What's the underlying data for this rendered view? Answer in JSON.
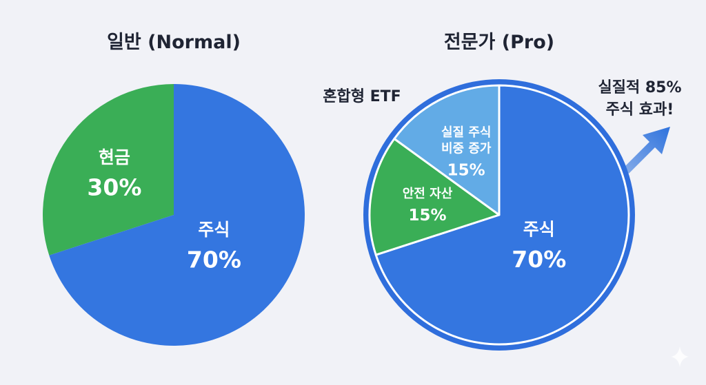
{
  "colors": {
    "background": "#f1f2f7",
    "stock": "#3476e0",
    "stock_rim": "#2f6edc",
    "cash": "#3aae56",
    "etf_stock": "#62abe6",
    "arrow": "#2f73dd",
    "text": "#1f2433"
  },
  "chart_data": [
    {
      "type": "pie",
      "title": "일반 (Normal)",
      "slices": [
        {
          "label": "현금",
          "value": 30,
          "value_label": "30%",
          "color": "#3aae56"
        },
        {
          "label": "주식",
          "value": 70,
          "value_label": "70%",
          "color": "#3476e0"
        }
      ]
    },
    {
      "type": "pie",
      "title": "전문가 (Pro)",
      "slices": [
        {
          "label": "안전 자산",
          "value": 15,
          "value_label": "15%",
          "color": "#3aae56"
        },
        {
          "label": "실질 주식 비중 증가",
          "label_lines": [
            "실질 주식",
            "비중 증가"
          ],
          "value": 15,
          "value_label": "15%",
          "color": "#62abe6"
        },
        {
          "label": "주식",
          "value": 70,
          "value_label": "70%",
          "color": "#3476e0"
        }
      ],
      "outer_ring_label": "혼합형 ETF",
      "callout_lines": [
        "실질적 85%",
        "주식 효과!"
      ],
      "effective_stock_percent": 85
    }
  ]
}
